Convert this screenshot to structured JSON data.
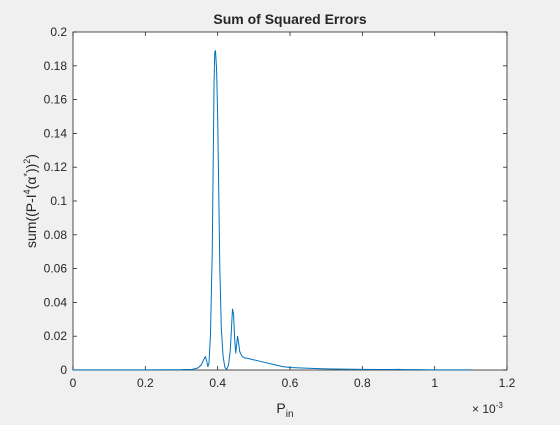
{
  "chart_data": {
    "type": "line",
    "title": "Sum of Squared Errors",
    "xlabel": {
      "main": "P",
      "sub": "in"
    },
    "ylabel": {
      "a": "sum((P-I",
      "sup1": "4",
      "b": "(α",
      "sup2": "*",
      "c": "))",
      "sup3": "2",
      "d": ")"
    },
    "x_multiplier": {
      "base": "× 10",
      "exp": "-3"
    },
    "xlim": [
      0,
      1.2
    ],
    "ylim": [
      0,
      0.2
    ],
    "xticks": [
      0,
      0.2,
      0.4,
      0.6,
      0.8,
      1,
      1.2
    ],
    "xtick_labels": [
      "0",
      "0.2",
      "0.4",
      "0.6",
      "0.8",
      "1",
      "1.2"
    ],
    "yticks": [
      0,
      0.02,
      0.04,
      0.06,
      0.08,
      0.1,
      0.12,
      0.14,
      0.16,
      0.18,
      0.2
    ],
    "ytick_labels": [
      "0",
      "0.02",
      "0.04",
      "0.06",
      "0.08",
      "0.1",
      "0.12",
      "0.14",
      "0.16",
      "0.18",
      "0.2"
    ],
    "grid": false,
    "series": [
      {
        "color": "#0072bd",
        "x": [
          0,
          0.1,
          0.2,
          0.3,
          0.33,
          0.345,
          0.355,
          0.36,
          0.366,
          0.37,
          0.373,
          0.376,
          0.38,
          0.385,
          0.388,
          0.39,
          0.392,
          0.394,
          0.397,
          0.4,
          0.403,
          0.406,
          0.41,
          0.415,
          0.42,
          0.425,
          0.43,
          0.435,
          0.437,
          0.439,
          0.441,
          0.444,
          0.447,
          0.45,
          0.452,
          0.455,
          0.458,
          0.461,
          0.465,
          0.468,
          0.472,
          0.476,
          0.48,
          0.5,
          0.52,
          0.55,
          0.58,
          0.6,
          0.65,
          0.7,
          0.75,
          0.8,
          0.85,
          0.88,
          0.9,
          0.92,
          0.95,
          1.0,
          1.05,
          1.1
        ],
        "y": [
          0.0001,
          0.0001,
          0.0001,
          0.0002,
          0.0004,
          0.0012,
          0.003,
          0.0055,
          0.008,
          0.005,
          0.002,
          0.004,
          0.02,
          0.07,
          0.13,
          0.17,
          0.188,
          0.189,
          0.178,
          0.15,
          0.105,
          0.06,
          0.025,
          0.008,
          0.0015,
          0.0003,
          0.003,
          0.012,
          0.02,
          0.028,
          0.036,
          0.033,
          0.018,
          0.01,
          0.014,
          0.02,
          0.016,
          0.011,
          0.009,
          0.008,
          0.0075,
          0.007,
          0.007,
          0.006,
          0.005,
          0.0035,
          0.002,
          0.0015,
          0.001,
          0.0007,
          0.0005,
          0.0004,
          0.0003,
          0.0003,
          0.0004,
          0.0002,
          0.0002,
          0.0001,
          0.0001,
          0.0001
        ]
      }
    ]
  }
}
